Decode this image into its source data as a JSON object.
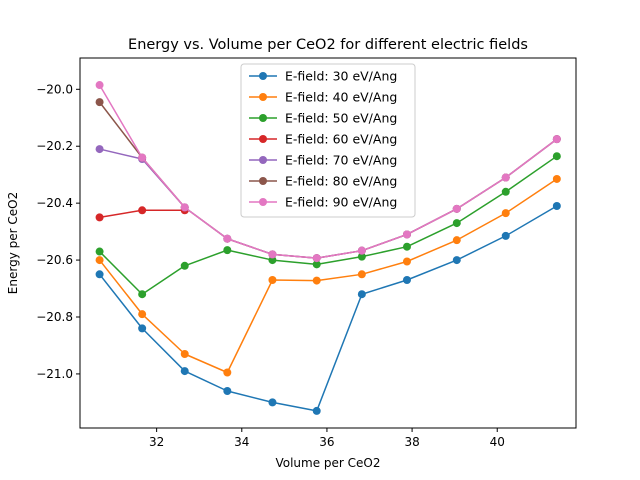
{
  "chart_data": {
    "type": "line",
    "title": "Energy vs. Volume per CeO2 for different electric fields",
    "xlabel": "Volume per CeO2",
    "ylabel": "Energy per CeO2",
    "xlim": [
      30.2,
      41.85
    ],
    "ylim": [
      -21.19,
      -19.89
    ],
    "xticks": [
      32,
      34,
      36,
      38,
      40
    ],
    "yticks": [
      -21.0,
      -20.8,
      -20.6,
      -20.4,
      -20.2,
      -20.0
    ],
    "xtick_labels": [
      "32",
      "34",
      "36",
      "38",
      "40"
    ],
    "ytick_labels": [
      "−21.0",
      "−20.8",
      "−20.6",
      "−20.4",
      "−20.2",
      "−20.0"
    ],
    "grid": false,
    "legend_position": "top-center",
    "x": [
      30.66,
      31.66,
      32.66,
      33.66,
      34.72,
      35.76,
      36.82,
      37.88,
      39.05,
      40.2,
      41.4
    ],
    "series": [
      {
        "name": "E-field: 30 eV/Ang",
        "color": "#1f77b4",
        "values": [
          -20.65,
          -20.84,
          -20.99,
          -21.06,
          -21.1,
          -21.13,
          -20.72,
          -20.67,
          -20.6,
          -20.515,
          -20.41
        ]
      },
      {
        "name": "E-field: 40 eV/Ang",
        "color": "#ff7f0e",
        "values": [
          -20.6,
          -20.79,
          -20.93,
          -20.995,
          -20.67,
          -20.672,
          -20.65,
          -20.605,
          -20.53,
          -20.435,
          -20.315
        ]
      },
      {
        "name": "E-field: 50 eV/Ang",
        "color": "#2ca02c",
        "values": [
          -20.57,
          -20.72,
          -20.62,
          -20.565,
          -20.6,
          -20.615,
          -20.588,
          -20.553,
          -20.47,
          -20.36,
          -20.235
        ]
      },
      {
        "name": "E-field: 60 eV/Ang",
        "color": "#d62728",
        "values": [
          -20.45,
          -20.425,
          -20.425,
          null,
          null,
          null,
          null,
          null,
          null,
          null,
          null
        ]
      },
      {
        "name": "E-field: 70 eV/Ang",
        "color": "#9467bd",
        "values": [
          -20.21,
          -20.245,
          -20.415,
          -20.525,
          -20.58,
          -20.593,
          -20.567,
          -20.51,
          -20.42,
          -20.31,
          -20.175
        ]
      },
      {
        "name": "E-field: 80 eV/Ang",
        "color": "#8c564b",
        "values": [
          -20.045,
          -20.24,
          -20.415,
          -20.525,
          -20.58,
          -20.593,
          -20.567,
          -20.51,
          -20.42,
          -20.31,
          -20.175
        ]
      },
      {
        "name": "E-field: 90 eV/Ang",
        "color": "#e377c2",
        "values": [
          -19.985,
          -20.24,
          -20.415,
          -20.525,
          -20.58,
          -20.593,
          -20.567,
          -20.51,
          -20.42,
          -20.31,
          -20.175
        ]
      }
    ]
  }
}
